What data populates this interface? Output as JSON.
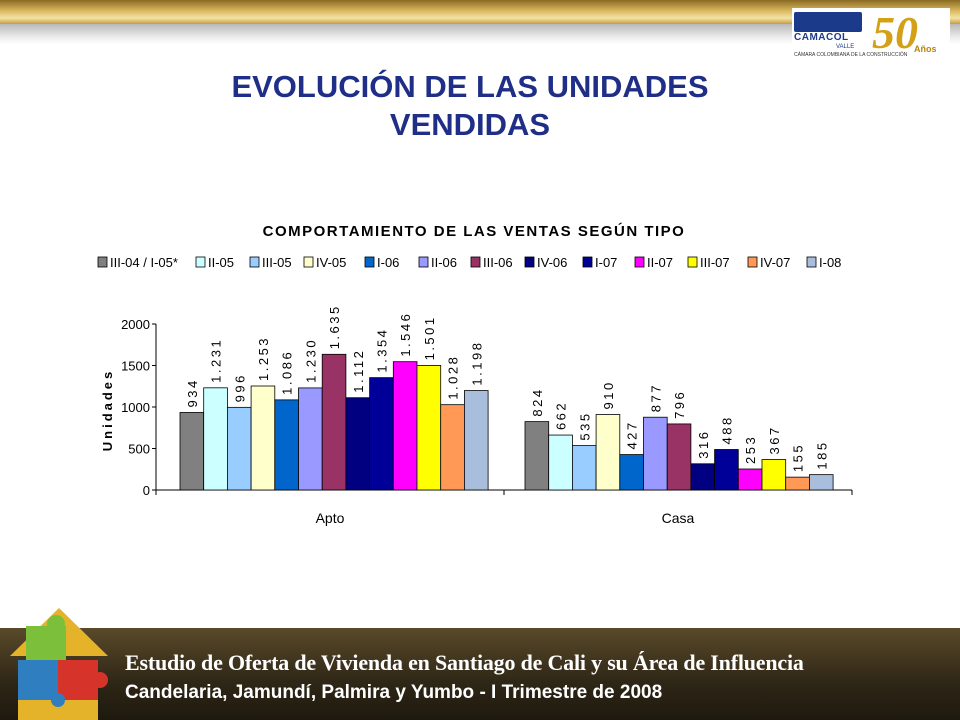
{
  "page": {
    "title_line1": "EVOLUCIÓN DE LAS UNIDADES",
    "title_line2": "VENDIDAS"
  },
  "logo": {
    "name": "CAMACOL",
    "sub": "VALLE",
    "tagline": "CÁMARA COLOMBIANA DE LA CONSTRUCCIÓN",
    "anniversary_number": "50",
    "anniversary_word": "Años"
  },
  "footer": {
    "line1": "Estudio de Oferta de Vivienda en Santiago de Cali y su Área de Influencia",
    "line2": "Candelaria, Jamundí, Palmira y Yumbo - I Trimestre de 2008"
  },
  "chart_data": {
    "type": "bar",
    "title": "COMPORTAMIENTO DE LAS VENTAS SEGÚN TIPO",
    "ylabel": "Unidades",
    "xlabel": "",
    "ylim": [
      0,
      2000
    ],
    "yticks": [
      "0",
      "500",
      "1000",
      "1500",
      "2000"
    ],
    "legend_position": "top",
    "categories": [
      "Apto",
      "Casa"
    ],
    "series": [
      {
        "name": "III-04 / I-05*",
        "color": "#808080",
        "values": [
          934,
          824
        ],
        "labels": [
          "934",
          "824"
        ]
      },
      {
        "name": "II-05",
        "color": "#ccffff",
        "values": [
          1231,
          662
        ],
        "labels": [
          "1.231",
          "662"
        ]
      },
      {
        "name": "III-05",
        "color": "#99ccff",
        "values": [
          996,
          535
        ],
        "labels": [
          "996",
          "535"
        ]
      },
      {
        "name": "IV-05",
        "color": "#ffffcc",
        "values": [
          1253,
          910
        ],
        "labels": [
          "1.253",
          "910"
        ]
      },
      {
        "name": "I-06",
        "color": "#0066cc",
        "values": [
          1086,
          427
        ],
        "labels": [
          "1.086",
          "427"
        ]
      },
      {
        "name": "II-06",
        "color": "#9999ff",
        "values": [
          1230,
          877
        ],
        "labels": [
          "1.230",
          "877"
        ]
      },
      {
        "name": "III-06",
        "color": "#993366",
        "values": [
          1635,
          796
        ],
        "labels": [
          "1.635",
          "796"
        ]
      },
      {
        "name": "IV-06",
        "color": "#000080",
        "values": [
          1112,
          316
        ],
        "labels": [
          "1.112",
          "316"
        ]
      },
      {
        "name": "I-07",
        "color": "#000099",
        "values": [
          1354,
          488
        ],
        "labels": [
          "1.354",
          "488"
        ]
      },
      {
        "name": "II-07",
        "color": "#ff00ff",
        "values": [
          1546,
          253
        ],
        "labels": [
          "1.546",
          "253"
        ]
      },
      {
        "name": "III-07",
        "color": "#ffff00",
        "values": [
          1501,
          367
        ],
        "labels": [
          "1.501",
          "367"
        ]
      },
      {
        "name": "IV-07",
        "color": "#ff9955",
        "values": [
          1028,
          155
        ],
        "labels": [
          "1.028",
          "155"
        ]
      },
      {
        "name": "I-08",
        "color": "#a9bedc",
        "values": [
          1198,
          185
        ],
        "labels": [
          "1.198",
          "185"
        ]
      }
    ]
  }
}
